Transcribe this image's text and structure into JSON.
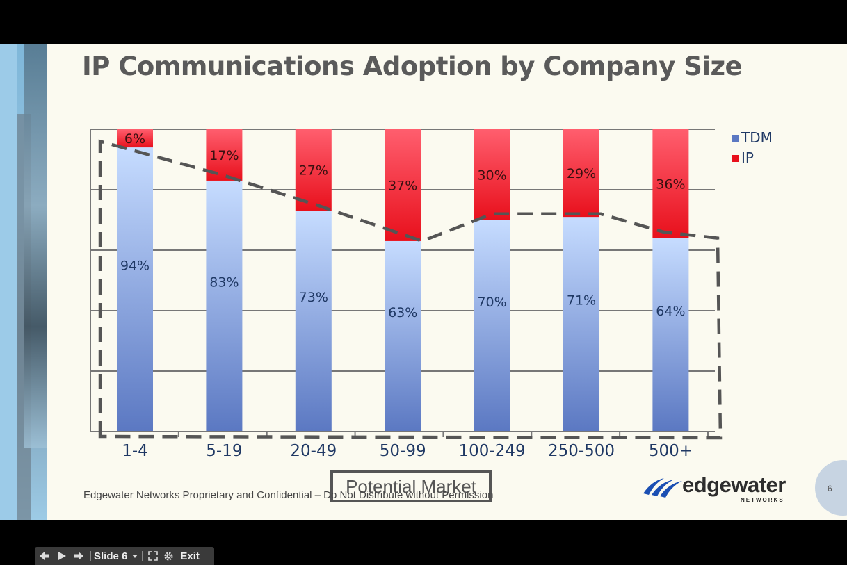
{
  "slide": {
    "title": "IP Communications Adoption by Company Size",
    "footer": "Edgewater Networks Proprietary and Confidential – Do Not Distribute without Permission",
    "callout": "Potential Market",
    "page_number": "6",
    "logo": {
      "name": "edgewater",
      "tagline": "NETWORKS"
    }
  },
  "colors": {
    "tdm_top": "#c6dcff",
    "tdm_bottom": "#5b78c2",
    "ip_top": "#ff5e6e",
    "ip_bottom": "#e8101c",
    "grid": "#777777",
    "label": "#1f3864",
    "dash": "#555555"
  },
  "chart_data": {
    "type": "bar",
    "stacked": true,
    "categories": [
      "1-4",
      "5-19",
      "20-49",
      "50-99",
      "100-249",
      "250-500",
      "500+"
    ],
    "series": [
      {
        "name": "TDM",
        "values": [
          94,
          83,
          73,
          63,
          70,
          71,
          64
        ],
        "labels": [
          "94%",
          "83%",
          "73%",
          "63%",
          "70%",
          "71%",
          "64%"
        ]
      },
      {
        "name": "IP",
        "values": [
          6,
          17,
          27,
          37,
          30,
          29,
          36
        ],
        "labels": [
          "6%",
          "17%",
          "27%",
          "37%",
          "30%",
          "29%",
          "36%"
        ]
      }
    ],
    "ylim": [
      0,
      100
    ],
    "gridlines": [
      0,
      20,
      40,
      60,
      80,
      100
    ],
    "legend": {
      "position": "top-right",
      "entries": [
        "TDM",
        "IP"
      ]
    },
    "annotation": {
      "type": "dashed-outline",
      "label": "Potential Market",
      "trace_values": [
        96,
        85,
        75,
        63,
        72,
        72,
        66,
        64
      ]
    }
  },
  "toolbar": {
    "slide_label": "Slide 6",
    "exit_label": "Exit",
    "icons": [
      "back-arrow-icon",
      "play-icon",
      "forward-arrow-icon",
      "dropdown-icon",
      "fullscreen-icon",
      "gear-icon"
    ]
  }
}
